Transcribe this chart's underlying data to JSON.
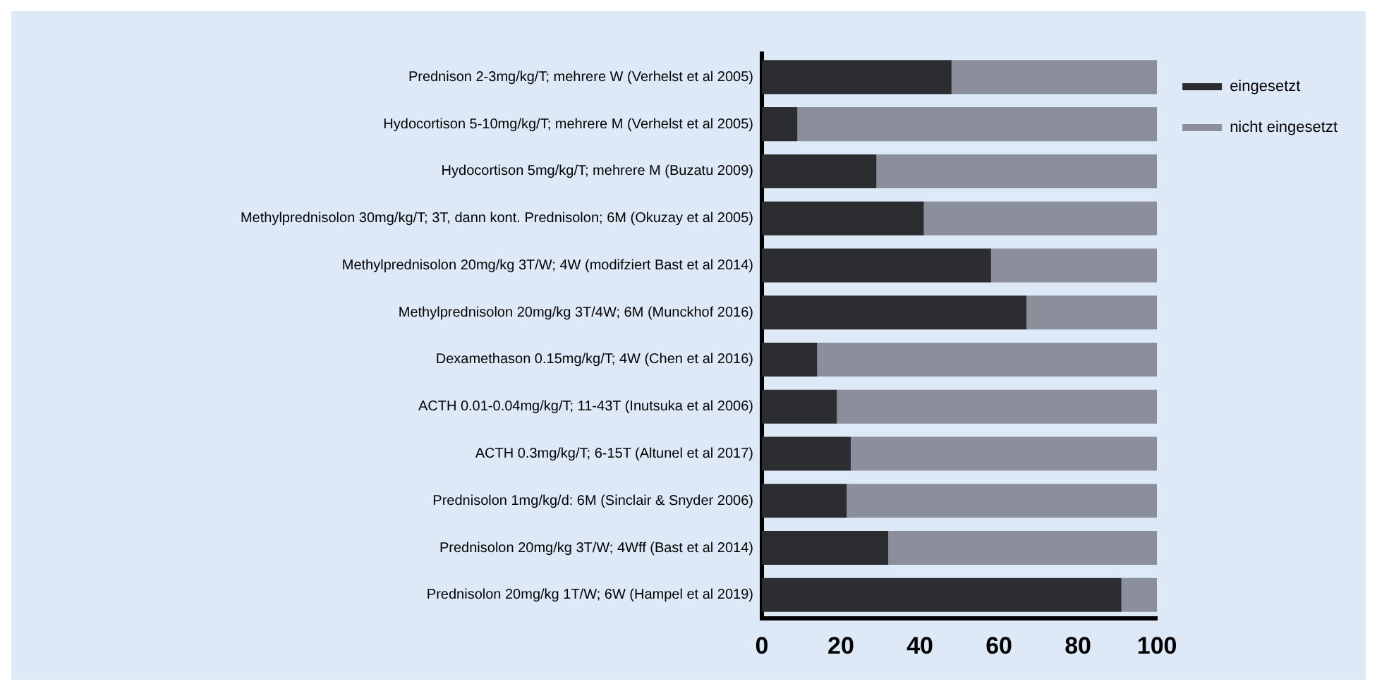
{
  "chart_data": {
    "type": "bar",
    "orientation": "horizontal",
    "stacked": true,
    "categories": [
      "Prednison 2-3mg/kg/T; mehrere W (Verhelst et al 2005)",
      "Hydocortison 5-10mg/kg/T; mehrere M (Verhelst et al 2005)",
      "Hydocortison 5mg/kg/T; mehrere M (Buzatu 2009)",
      "Methylprednisolon 30mg/kg/T; 3T, dann kont. Prednisolon; 6M (Okuzay et al 2005)",
      "Methylprednisolon 20mg/kg 3T/W; 4W (modifziert Bast et al 2014)",
      "Methylprednisolon 20mg/kg 3T/4W; 6M (Munckhof 2016)",
      "Dexamethason 0.15mg/kg/T; 4W (Chen et al 2016)",
      "ACTH 0.01-0.04mg/kg/T; 11-43T (Inutsuka et al 2006)",
      "ACTH 0.3mg/kg/T; 6-15T (Altunel et al 2017)",
      "Prednisolon 1mg/kg/d: 6M (Sinclair & Snyder 2006)",
      "Prednisolon 20mg/kg 3T/W; 4Wff (Bast et al 2014)",
      "Prednisolon 20mg/kg 1T/W; 6W (Hampel et al 2019)"
    ],
    "series": [
      {
        "name": "eingesetzt",
        "color": "#2b2d31",
        "values": [
          48,
          9,
          29,
          41,
          58,
          67,
          14,
          19,
          22.5,
          21.5,
          32,
          91
        ]
      },
      {
        "name": "nicht eingesetzt",
        "color": "#8a8f9b",
        "values": [
          52,
          91,
          71,
          59,
          42,
          33,
          86,
          81,
          77.5,
          78.5,
          68,
          9
        ]
      }
    ],
    "xlim": [
      0,
      100
    ],
    "xticks": [
      0,
      20,
      40,
      60,
      80,
      100
    ],
    "grid": false,
    "legend": "top right"
  }
}
